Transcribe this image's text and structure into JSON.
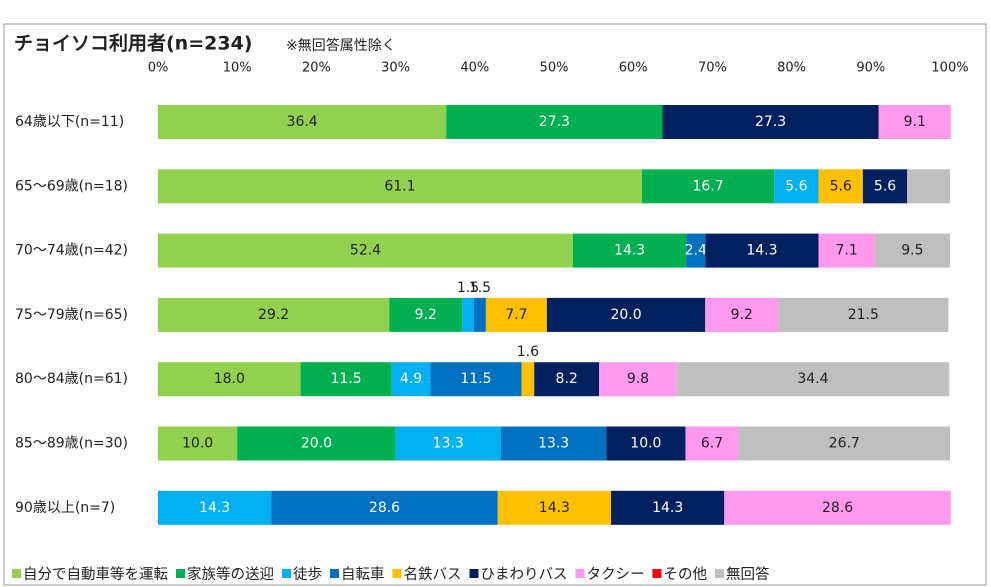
{
  "chart_data": {
    "type": "stacked_bar_horizontal",
    "title": "チョイソコ利用者(n=234)",
    "subtitle": "※無回答属性除く",
    "categories": [
      "64歳以下(n=11)",
      "65〜69歳(n=18)",
      "70〜74歳(n=42)",
      "75〜79歳(n=65)",
      "80〜84歳(n=61)",
      "85〜89歳(n=30)",
      "90歳以上(n=7)"
    ],
    "xlim": [
      0,
      100
    ],
    "xticks": [
      {
        "value": 0,
        "label": "0%"
      },
      {
        "value": 10,
        "label": "10%"
      },
      {
        "value": 20,
        "label": "20%"
      },
      {
        "value": 30,
        "label": "30%"
      },
      {
        "value": 40,
        "label": "40%"
      },
      {
        "value": 50,
        "label": "50%"
      },
      {
        "value": 60,
        "label": "60%"
      },
      {
        "value": 70,
        "label": "70%"
      },
      {
        "value": 80,
        "label": "80%"
      },
      {
        "value": 90,
        "label": "90%"
      },
      {
        "value": 100,
        "label": "100%"
      }
    ],
    "legend": "bottom",
    "series": [
      {
        "name": "自分で自動車等を運転",
        "color": "#92d050",
        "values": [
          36.4,
          61.1,
          52.4,
          29.2,
          18.0,
          10.0,
          0
        ],
        "value_labels": [
          "36.4",
          "61.1",
          "52.4",
          "29.2",
          "18.0",
          "10.0",
          null
        ]
      },
      {
        "name": "家族等の送迎",
        "color": "#00b050",
        "values": [
          27.3,
          16.7,
          14.3,
          9.2,
          11.5,
          20.0,
          0
        ],
        "value_labels": [
          "27.3",
          "16.7",
          "14.3",
          "9.2",
          "11.5",
          "20.0",
          null
        ]
      },
      {
        "name": "徒歩",
        "color": "#00b0f0",
        "values": [
          0,
          5.6,
          0,
          1.5,
          4.9,
          13.3,
          14.3
        ],
        "value_labels": [
          null,
          "5.6",
          null,
          "1.5",
          "4.9",
          "13.3",
          "14.3"
        ]
      },
      {
        "name": "自転車",
        "color": "#0070c0",
        "values": [
          0,
          0,
          2.4,
          1.5,
          11.5,
          13.3,
          28.6
        ],
        "value_labels": [
          null,
          null,
          "2.4",
          "1.5",
          "11.5",
          "13.3",
          "28.6"
        ]
      },
      {
        "name": "名鉄バス",
        "color": "#ffc000",
        "values": [
          0,
          5.6,
          0,
          7.7,
          1.6,
          0,
          14.3
        ],
        "value_labels": [
          null,
          "5.6",
          null,
          "7.7",
          "1.6",
          null,
          "14.3"
        ]
      },
      {
        "name": "ひまわりバス",
        "color": "#002060",
        "values": [
          27.3,
          5.6,
          14.3,
          20.0,
          8.2,
          10.0,
          14.3
        ],
        "value_labels": [
          "27.3",
          "5.6",
          "14.3",
          "20.0",
          "8.2",
          "10.0",
          "14.3"
        ]
      },
      {
        "name": "タクシー",
        "color": "#ff99ee",
        "values": [
          9.1,
          0,
          7.1,
          9.2,
          9.8,
          6.7,
          28.6
        ],
        "value_labels": [
          "9.1",
          null,
          "7.1",
          "9.2",
          "9.8",
          "6.7",
          "28.6"
        ]
      },
      {
        "name": "その他",
        "color": "#ff0000",
        "values": [
          0,
          0,
          0,
          0,
          0,
          0,
          0
        ],
        "value_labels": [
          null,
          null,
          null,
          null,
          null,
          null,
          null
        ]
      },
      {
        "name": "無回答",
        "color": "#bfbfbf",
        "values": [
          0,
          5.4,
          9.5,
          21.5,
          34.4,
          26.7,
          0
        ],
        "value_labels": [
          null,
          null,
          "9.5",
          "21.5",
          "34.4",
          "26.7",
          null
        ]
      }
    ]
  }
}
